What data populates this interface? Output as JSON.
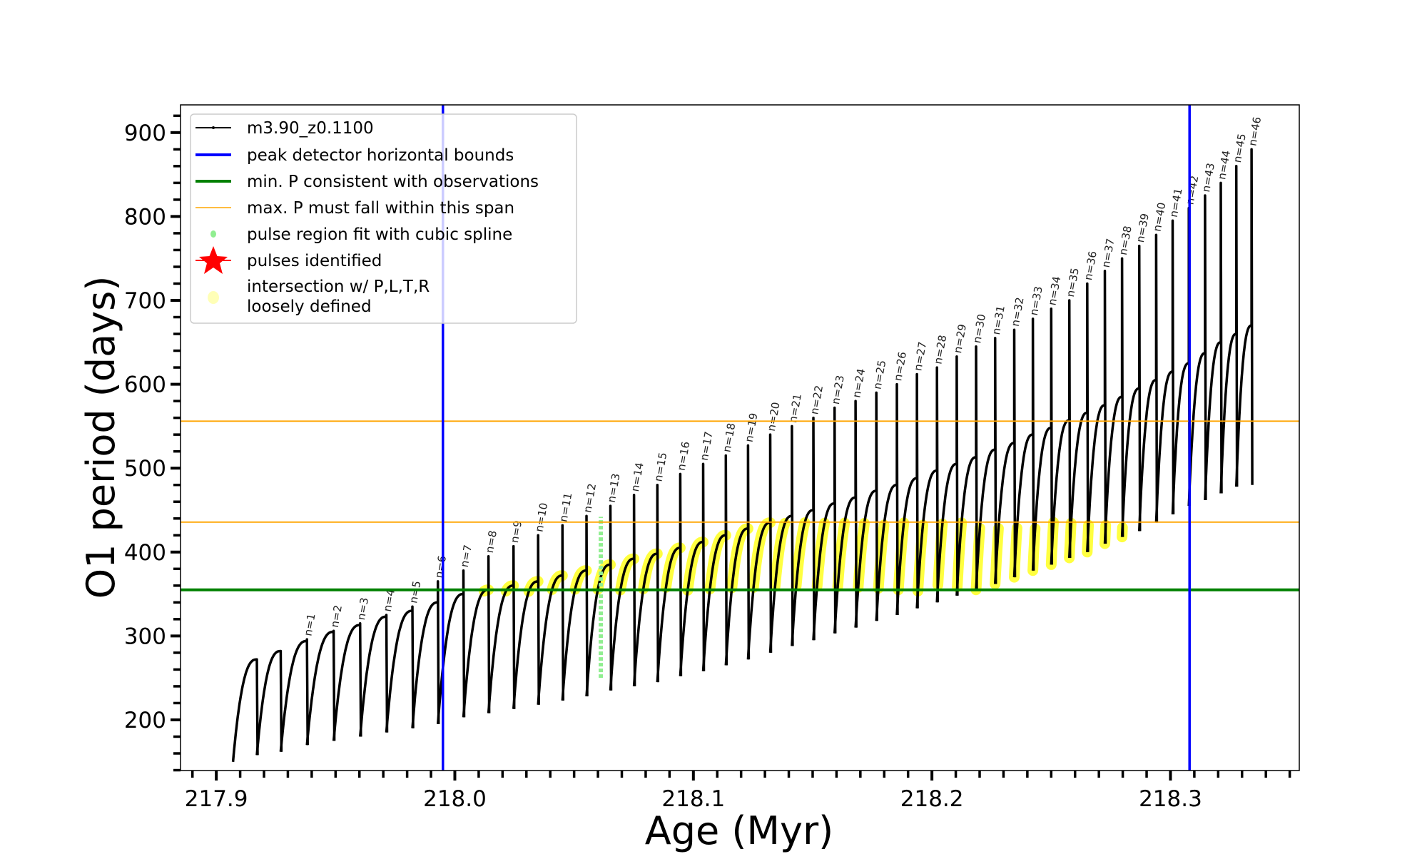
{
  "chart_data": {
    "type": "line",
    "xlabel": "Age (Myr)",
    "ylabel": "O1 period (days)",
    "xlim": [
      217.885,
      218.354
    ],
    "ylim": [
      139.6,
      933
    ],
    "xticks": [
      217.9,
      218.0,
      218.1,
      218.2,
      218.3
    ],
    "xtick_labels": [
      "217.9",
      "218.0",
      "218.1",
      "218.2",
      "218.3"
    ],
    "yticks": [
      200,
      300,
      400,
      500,
      600,
      700,
      800,
      900
    ],
    "ytick_labels": [
      "200",
      "300",
      "400",
      "500",
      "600",
      "700",
      "800",
      "900"
    ],
    "grid": false,
    "legend_position": "top-left",
    "legend": [
      {
        "label": "m3.90_z0.1100",
        "color": "#000000",
        "kind": "line-marker"
      },
      {
        "label": "peak detector horizontal bounds",
        "color": "#0000ff",
        "kind": "line"
      },
      {
        "label": "min. P consistent with observations",
        "color": "#008000",
        "kind": "line"
      },
      {
        "label": "max. P must fall within this span",
        "color": "#ffa500",
        "kind": "thin-line"
      },
      {
        "label": "pulse region fit with cubic spline",
        "color": "#90ee90",
        "kind": "dot"
      },
      {
        "label": "pulses identified",
        "color": "#ff0000",
        "kind": "star"
      },
      {
        "label": "intersection w/ P,L,T,R",
        "label2": "loosely defined",
        "color": "#ffff99",
        "kind": "dot"
      }
    ],
    "vlines": [
      217.995,
      218.308
    ],
    "min_P": 355,
    "max_P_span": [
      435.7,
      556
    ],
    "series": {
      "name": "m3.90_z0.1100",
      "start_age": 217.907,
      "start_min": 150,
      "pre_cycles": [
        {
          "age": 217.917,
          "peak": 272,
          "min": 158
        },
        {
          "age": 217.927,
          "peak": 282,
          "min": 162
        }
      ],
      "pulses": {
        "n": [
          1,
          2,
          3,
          4,
          5,
          6,
          7,
          8,
          9,
          10,
          11,
          12,
          13,
          14,
          15,
          16,
          17,
          18,
          19,
          20,
          21,
          22,
          23,
          24,
          25,
          26,
          27,
          28,
          29,
          30,
          31,
          32,
          33,
          34,
          35,
          36,
          37,
          38,
          39,
          40,
          41,
          42,
          43,
          44,
          45,
          46
        ],
        "labels": [
          "n=1",
          "n=2",
          "n=3",
          "n=4",
          "n=5",
          "n=6",
          "n=7",
          "n=8",
          "n=9",
          "n=10",
          "n=11",
          "n=12",
          "n=13",
          "n=14",
          "n=15",
          "n=16",
          "n=17",
          "n=18",
          "n=19",
          "n=20",
          "n=21",
          "n=22",
          "n=23",
          "n=24",
          "n=25",
          "n=26",
          "n=27",
          "n=28",
          "n=29",
          "n=30",
          "n=31",
          "n=32",
          "n=33",
          "n=34",
          "n=35",
          "n=36",
          "n=37",
          "n=38",
          "n=39",
          "n=40",
          "n=41",
          "n=42",
          "n=43",
          "n=44",
          "n=45",
          "n=46"
        ],
        "age": [
          217.938,
          217.9492,
          217.9603,
          217.9713,
          217.9822,
          217.9929,
          218.0036,
          218.0141,
          218.0246,
          218.0349,
          218.0451,
          218.0552,
          218.0652,
          218.0751,
          218.0849,
          218.0945,
          218.1041,
          218.1136,
          218.1229,
          218.1322,
          218.1413,
          218.1503,
          218.1592,
          218.168,
          218.1767,
          218.1853,
          218.1937,
          218.2021,
          218.2104,
          218.2185,
          218.2265,
          218.2345,
          218.2423,
          218.25,
          218.2576,
          218.2651,
          218.2725,
          218.2797,
          218.2869,
          218.294,
          218.3009,
          218.3077,
          218.3145,
          218.3211,
          218.3276,
          218.334
        ],
        "peak": [
          294,
          305,
          313,
          323,
          330,
          340,
          350,
          355,
          360,
          365,
          372,
          378,
          385,
          392,
          398,
          405,
          412,
          420,
          428,
          435,
          443,
          450,
          458,
          465,
          473,
          480,
          488,
          497,
          505,
          513,
          522,
          530,
          540,
          548,
          557,
          566,
          575,
          585,
          595,
          605,
          615,
          625,
          637,
          650,
          660,
          670
        ],
        "spike_top": [
          296,
          306,
          315,
          325,
          335,
          365,
          378,
          395,
          407,
          420,
          432,
          443,
          455,
          468,
          480,
          493,
          505,
          515,
          527,
          540,
          550,
          560,
          572,
          580,
          590,
          600,
          612,
          620,
          633,
          645,
          655,
          665,
          678,
          690,
          700,
          720,
          735,
          750,
          765,
          778,
          795,
          810,
          825,
          840,
          860,
          880
        ],
        "min_after": [
          170,
          175,
          180,
          185,
          190,
          195,
          203,
          208,
          213,
          218,
          223,
          228,
          235,
          240,
          245,
          252,
          258,
          265,
          272,
          280,
          288,
          295,
          303,
          310,
          318,
          325,
          333,
          340,
          348,
          355,
          362,
          370,
          378,
          385,
          393,
          400,
          410,
          418,
          425,
          435,
          445,
          455,
          462,
          470,
          478,
          480
        ],
        "end_age": 218.336,
        "end_value": 650
      }
    },
    "spline_fit": {
      "age": 218.0612,
      "range": [
        250,
        442
      ]
    },
    "intersection_pulses": [
      7,
      41
    ]
  }
}
